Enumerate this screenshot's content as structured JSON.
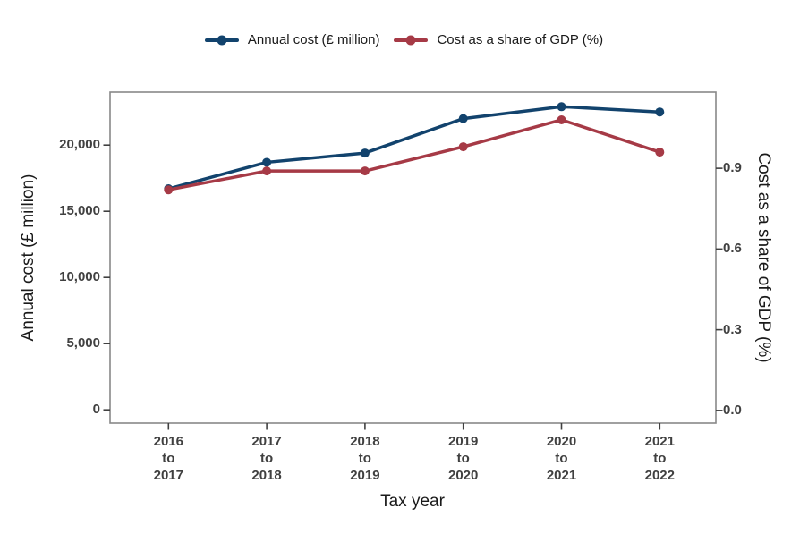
{
  "chart_data": {
    "type": "line",
    "title": "",
    "xlabel": "Tax year",
    "categories": [
      "2016 to 2017",
      "2017 to 2018",
      "2018 to 2019",
      "2019 to 2020",
      "2020 to 2021",
      "2021 to 2022"
    ],
    "series": [
      {
        "name": "Annual cost (£ million)",
        "axis": "left",
        "color": "#12436D",
        "values": [
          16700,
          18700,
          19400,
          22000,
          22900,
          22500
        ]
      },
      {
        "name": "Cost as a share of GDP (%)",
        "axis": "right",
        "color": "#A63A46",
        "values": [
          0.82,
          0.89,
          0.89,
          0.98,
          1.08,
          0.96
        ]
      }
    ],
    "left_axis": {
      "title": "Annual cost (£ million)",
      "ticks": [
        0,
        5000,
        10000,
        15000,
        20000
      ],
      "tick_labels": [
        "0",
        "5,000",
        "10,000",
        "15,000",
        "20,000"
      ],
      "range": [
        -1000,
        24000
      ]
    },
    "right_axis": {
      "title": "Cost as a share of GDP (%)",
      "ticks": [
        0,
        0.3,
        0.6,
        0.9
      ],
      "tick_labels": [
        "0.0",
        "0.3",
        "0.6",
        "0.9"
      ],
      "range": [
        -0.047,
        1.183
      ]
    },
    "grid": false,
    "legend_position": "top"
  }
}
